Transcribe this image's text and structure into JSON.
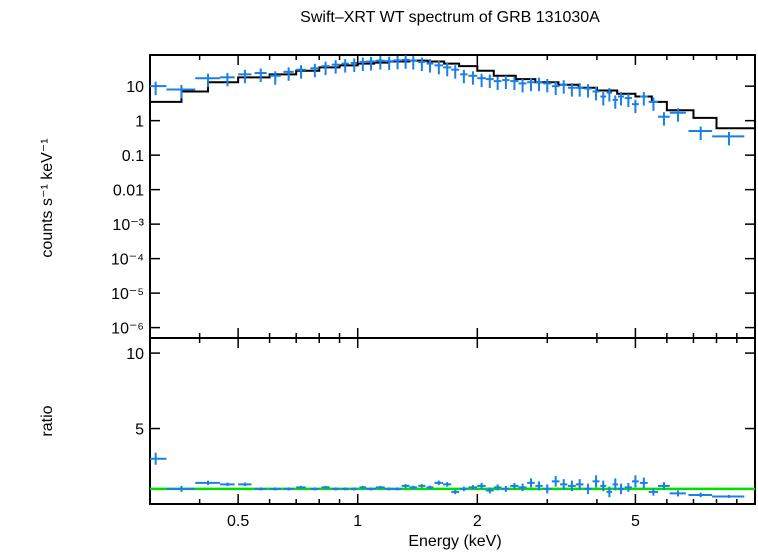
{
  "chart_data": {
    "title": "Swift–XRT WT spectrum of GRB 131030A",
    "xlabel": "Energy (keV)",
    "x_scale": "log",
    "xlim": [
      0.3,
      10
    ],
    "x_tick_labels": [
      "0.5",
      "1",
      "2",
      "5"
    ],
    "x_tick_values": [
      0.5,
      1,
      2,
      5
    ],
    "panels": [
      {
        "name": "spectrum",
        "type": "scatter",
        "ylabel": "counts s⁻¹ keV⁻¹",
        "y_scale": "log",
        "ylim": [
          5e-07,
          80
        ],
        "y_tick_labels": [
          "10",
          "1",
          "0.1",
          "0.01",
          "10⁻³",
          "10⁻⁴",
          "10⁻⁵",
          "10⁻⁶"
        ],
        "y_tick_values": [
          10,
          1,
          0.1,
          0.01,
          0.001,
          0.0001,
          1e-05,
          1e-06
        ],
        "data_color": "#1a7fe6",
        "model_color": "#000000",
        "data": {
          "x": [
            0.31,
            0.36,
            0.42,
            0.47,
            0.52,
            0.57,
            0.62,
            0.67,
            0.72,
            0.78,
            0.83,
            0.88,
            0.93,
            0.98,
            1.03,
            1.08,
            1.14,
            1.2,
            1.26,
            1.32,
            1.38,
            1.45,
            1.52,
            1.6,
            1.68,
            1.76,
            1.85,
            1.95,
            2.05,
            2.15,
            2.25,
            2.36,
            2.48,
            2.6,
            2.73,
            2.86,
            3.0,
            3.15,
            3.3,
            3.46,
            3.62,
            3.8,
            3.98,
            4.15,
            4.3,
            4.45,
            4.6,
            4.8,
            5.0,
            5.25,
            5.55,
            5.9,
            6.4,
            7.3,
            8.6
          ],
          "y": [
            10,
            8,
            17,
            18,
            22,
            24,
            20,
            26,
            30,
            33,
            38,
            42,
            45,
            47,
            50,
            52,
            55,
            53,
            56,
            58,
            55,
            50,
            45,
            40,
            35,
            30,
            22,
            20,
            17,
            16,
            14,
            15,
            14,
            12,
            13,
            13,
            12,
            10,
            11,
            9,
            9,
            8.5,
            7,
            5,
            6.5,
            4,
            5,
            4.5,
            3,
            5,
            3.5,
            1.3,
            1.7,
            0.5,
            0.35
          ],
          "xerr": [
            0.02,
            0.03,
            0.03,
            0.02,
            0.02,
            0.02,
            0.02,
            0.02,
            0.02,
            0.02,
            0.02,
            0.02,
            0.02,
            0.02,
            0.02,
            0.03,
            0.03,
            0.03,
            0.03,
            0.03,
            0.03,
            0.03,
            0.03,
            0.04,
            0.04,
            0.04,
            0.04,
            0.05,
            0.05,
            0.05,
            0.05,
            0.05,
            0.06,
            0.06,
            0.06,
            0.06,
            0.07,
            0.07,
            0.07,
            0.08,
            0.08,
            0.08,
            0.08,
            0.07,
            0.07,
            0.07,
            0.08,
            0.1,
            0.1,
            0.12,
            0.15,
            0.2,
            0.3,
            0.5,
            0.8
          ]
        },
        "model": {
          "x": [
            0.3,
            0.36,
            0.42,
            0.5,
            0.6,
            0.7,
            0.8,
            0.9,
            1.0,
            1.1,
            1.2,
            1.35,
            1.5,
            1.65,
            1.8,
            2.0,
            2.2,
            2.5,
            2.8,
            3.2,
            3.6,
            4.0,
            4.5,
            5.0,
            5.5,
            6.0,
            7.0,
            8.0,
            10.0
          ],
          "y": [
            3.5,
            7,
            13,
            18,
            22,
            28,
            35,
            40,
            45,
            48,
            52,
            55,
            52,
            45,
            38,
            28,
            20,
            16,
            13,
            11,
            9,
            7.5,
            6,
            5,
            3.5,
            2,
            1.2,
            0.6,
            0.5
          ]
        }
      },
      {
        "name": "ratio",
        "type": "scatter",
        "ylabel": "ratio",
        "y_scale": "linear",
        "ylim": [
          0,
          11
        ],
        "y_tick_labels": [
          "5",
          "10"
        ],
        "y_tick_values": [
          5,
          10
        ],
        "data_color": "#1a7fe6",
        "model_color": "#00e000",
        "unity_value": 1,
        "data": {
          "x": [
            0.31,
            0.36,
            0.42,
            0.47,
            0.52,
            0.57,
            0.62,
            0.67,
            0.72,
            0.78,
            0.83,
            0.88,
            0.93,
            0.98,
            1.03,
            1.08,
            1.14,
            1.2,
            1.26,
            1.32,
            1.38,
            1.45,
            1.52,
            1.6,
            1.68,
            1.76,
            1.85,
            1.95,
            2.05,
            2.15,
            2.25,
            2.36,
            2.48,
            2.6,
            2.73,
            2.86,
            3.0,
            3.15,
            3.3,
            3.46,
            3.62,
            3.8,
            3.98,
            4.15,
            4.3,
            4.45,
            4.6,
            4.8,
            5.0,
            5.25,
            5.55,
            5.9,
            6.4,
            7.3,
            8.6
          ],
          "y": [
            3.0,
            1.0,
            1.4,
            1.3,
            1.3,
            1.0,
            1.0,
            1.0,
            1.1,
            1.0,
            1.1,
            1.0,
            1.0,
            1.0,
            1.1,
            1.0,
            1.1,
            1.0,
            1.0,
            1.2,
            1.1,
            1.2,
            1.1,
            1.4,
            1.3,
            0.8,
            1.0,
            1.1,
            1.2,
            0.9,
            1.1,
            1.0,
            1.2,
            1.1,
            1.4,
            1.2,
            1.0,
            1.5,
            1.3,
            1.2,
            1.3,
            1.0,
            1.5,
            1.2,
            0.8,
            1.3,
            1.0,
            1.1,
            1.5,
            1.4,
            0.8,
            1.2,
            0.7,
            0.6,
            0.5
          ],
          "xerr": [
            0.02,
            0.03,
            0.03,
            0.02,
            0.02,
            0.02,
            0.02,
            0.02,
            0.02,
            0.02,
            0.02,
            0.02,
            0.02,
            0.02,
            0.02,
            0.03,
            0.03,
            0.03,
            0.03,
            0.03,
            0.03,
            0.03,
            0.03,
            0.04,
            0.04,
            0.04,
            0.04,
            0.05,
            0.05,
            0.05,
            0.05,
            0.05,
            0.06,
            0.06,
            0.06,
            0.06,
            0.07,
            0.07,
            0.07,
            0.08,
            0.08,
            0.08,
            0.08,
            0.07,
            0.07,
            0.07,
            0.08,
            0.1,
            0.1,
            0.12,
            0.15,
            0.2,
            0.3,
            0.5,
            0.8
          ],
          "yerr": [
            0.4,
            0.2,
            0.15,
            0.12,
            0.12,
            0.1,
            0.1,
            0.1,
            0.1,
            0.1,
            0.1,
            0.1,
            0.1,
            0.1,
            0.1,
            0.1,
            0.1,
            0.1,
            0.1,
            0.12,
            0.12,
            0.12,
            0.12,
            0.15,
            0.15,
            0.15,
            0.15,
            0.15,
            0.2,
            0.2,
            0.2,
            0.2,
            0.2,
            0.25,
            0.3,
            0.3,
            0.3,
            0.35,
            0.35,
            0.35,
            0.35,
            0.35,
            0.4,
            0.35,
            0.35,
            0.4,
            0.35,
            0.3,
            0.4,
            0.35,
            0.25,
            0.25,
            0.2,
            0.15,
            0.1
          ]
        }
      }
    ]
  }
}
